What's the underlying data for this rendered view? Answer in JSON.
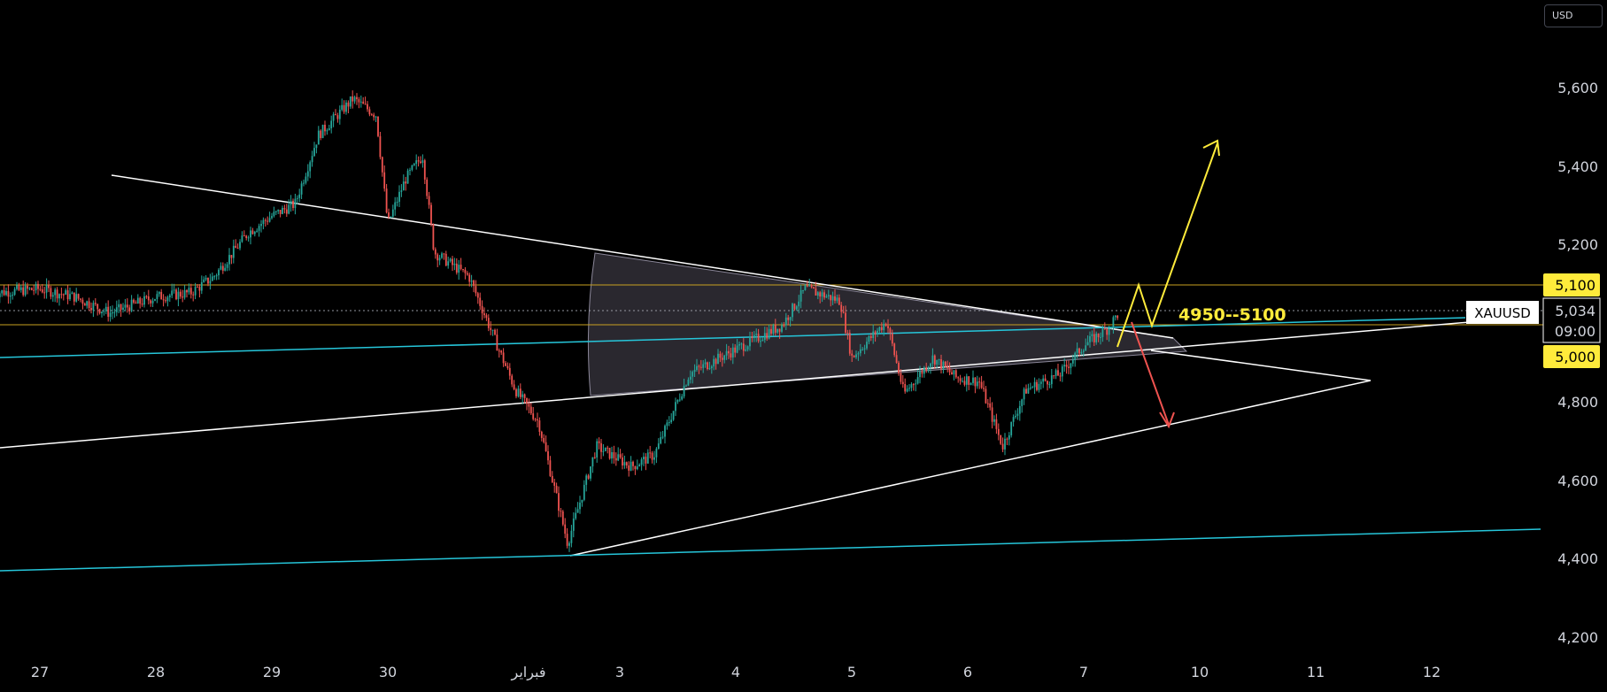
{
  "currency": "USD",
  "symbol": "XAUUSD",
  "last_price": "5,034",
  "countdown": "09:00",
  "y_ticks": [
    "5,600",
    "5,400",
    "5,200",
    "4,800",
    "4,600",
    "4,400",
    "4,200"
  ],
  "x_ticks": [
    "27",
    "28",
    "29",
    "30",
    "فبراير",
    "3",
    "4",
    "5",
    "6",
    "7",
    "10",
    "11",
    "12"
  ],
  "level_labels": [
    "5,100",
    "5,000"
  ],
  "zone_label": "4950--5100",
  "colors": {
    "background": "#000000",
    "candle_up": "#26a69a",
    "candle_down": "#ef5350",
    "trendline": "#ffffff",
    "channel": "#26c6da",
    "level_line": "#c8a020",
    "level_badge": "#ffeb3b",
    "bull_arrow": "#ffeb3b",
    "bear_arrow": "#ef5350"
  },
  "chart_data": {
    "type": "candlestick",
    "symbol": "XAUUSD",
    "y_range": [
      4180,
      5660
    ],
    "y_scale": "linear",
    "x_axis": "date",
    "x_range": [
      26.6,
      13.0
    ],
    "grid": false,
    "horizontal_levels": [
      5100,
      5000
    ],
    "price_path": [
      {
        "d": 26.6,
        "p": 5080
      },
      {
        "d": 27.0,
        "p": 5090
      },
      {
        "d": 27.3,
        "p": 5070
      },
      {
        "d": 27.6,
        "p": 5030
      },
      {
        "d": 28.0,
        "p": 5070
      },
      {
        "d": 28.3,
        "p": 5080
      },
      {
        "d": 28.5,
        "p": 5120
      },
      {
        "d": 28.8,
        "p": 5230
      },
      {
        "d": 29.0,
        "p": 5270
      },
      {
        "d": 29.2,
        "p": 5300
      },
      {
        "d": 29.4,
        "p": 5470
      },
      {
        "d": 29.7,
        "p": 5560
      },
      {
        "d": 29.9,
        "p": 5520
      },
      {
        "d": 30.0,
        "p": 5250
      },
      {
        "d": 30.15,
        "p": 5360
      },
      {
        "d": 30.3,
        "p": 5420
      },
      {
        "d": 30.4,
        "p": 5180
      },
      {
        "d": 30.7,
        "p": 5120
      },
      {
        "d": 30.9,
        "p": 4980
      },
      {
        "d": 31.1,
        "p": 4840
      },
      {
        "d": 31.3,
        "p": 4760
      },
      {
        "d": 31.55,
        "p": 4460
      },
      {
        "d": 31.8,
        "p": 4700
      },
      {
        "d": 32.1,
        "p": 4650
      },
      {
        "d": 32.3,
        "p": 4680
      },
      {
        "d": 32.6,
        "p": 4880
      },
      {
        "d": 33.0,
        "p": 4940
      },
      {
        "d": 33.4,
        "p": 5000
      },
      {
        "d": 33.6,
        "p": 5090
      },
      {
        "d": 33.9,
        "p": 5060
      },
      {
        "d": 34.0,
        "p": 4920
      },
      {
        "d": 34.3,
        "p": 5010
      },
      {
        "d": 34.45,
        "p": 4830
      },
      {
        "d": 34.7,
        "p": 4920
      },
      {
        "d": 34.9,
        "p": 4870
      },
      {
        "d": 35.1,
        "p": 4860
      },
      {
        "d": 35.3,
        "p": 4700
      },
      {
        "d": 35.5,
        "p": 4840
      },
      {
        "d": 35.8,
        "p": 4880
      },
      {
        "d": 36.0,
        "p": 4950
      },
      {
        "d": 36.2,
        "p": 4990
      },
      {
        "d": 36.3,
        "p": 5030
      }
    ],
    "forecast": {
      "bullish_target": 5470,
      "bearish_target": 4740,
      "zone": [
        4950,
        5100
      ]
    }
  }
}
